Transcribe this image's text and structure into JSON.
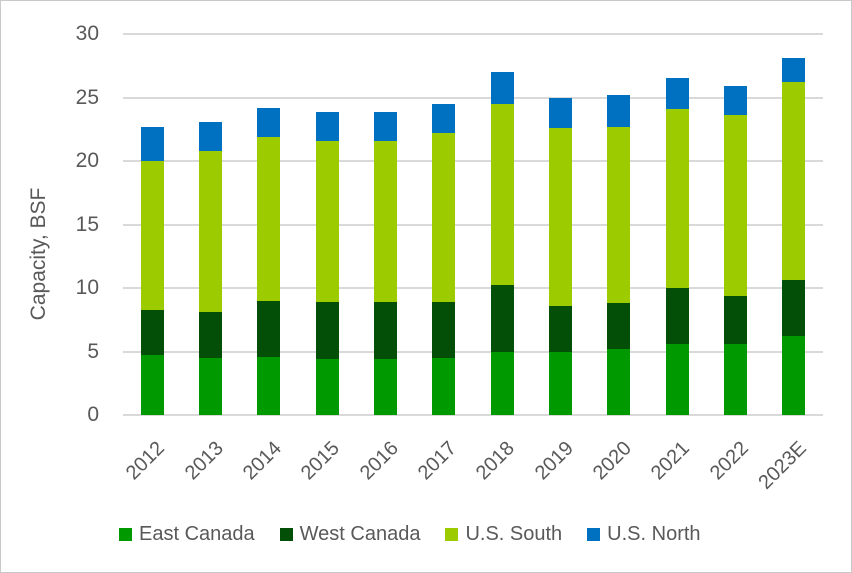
{
  "chart_data": {
    "type": "bar",
    "stacked": true,
    "title": "",
    "ylabel": "Capacity, BSF",
    "xlabel": "",
    "ylim": [
      0,
      30
    ],
    "yticks": [
      0,
      5,
      10,
      15,
      20,
      25,
      30
    ],
    "grid": true,
    "legend_position": "bottom",
    "categories": [
      "2012",
      "2013",
      "2014",
      "2015",
      "2016",
      "2017",
      "2018",
      "2019",
      "2020",
      "2021",
      "2022",
      "2023E"
    ],
    "series": [
      {
        "name": "East Canada",
        "color": "#009A00",
        "values": [
          4.7,
          4.5,
          4.6,
          4.4,
          4.4,
          4.5,
          5.0,
          5.0,
          5.2,
          5.6,
          5.6,
          6.2
        ]
      },
      {
        "name": "West Canada",
        "color": "#044F08",
        "values": [
          3.6,
          3.6,
          4.4,
          4.5,
          4.5,
          4.4,
          5.2,
          3.6,
          3.6,
          4.4,
          3.8,
          4.4
        ]
      },
      {
        "name": "U.S. South",
        "color": "#9CCB00",
        "values": [
          11.7,
          12.7,
          12.9,
          12.7,
          12.7,
          13.3,
          14.3,
          14.0,
          13.9,
          14.1,
          14.2,
          15.6
        ]
      },
      {
        "name": "U.S. North",
        "color": "#0070C0",
        "values": [
          2.7,
          2.3,
          2.3,
          2.3,
          2.3,
          2.3,
          2.5,
          2.4,
          2.5,
          2.4,
          2.3,
          1.9
        ]
      }
    ],
    "totals": [
      22.7,
      23.1,
      24.2,
      23.9,
      23.9,
      24.5,
      27.0,
      25.0,
      25.2,
      26.5,
      25.9,
      28.1
    ]
  },
  "colors": {
    "grid": "#d9d9d9",
    "axis_text": "#595959",
    "background": "#ffffff",
    "frame_border": "#c9c9c9"
  }
}
